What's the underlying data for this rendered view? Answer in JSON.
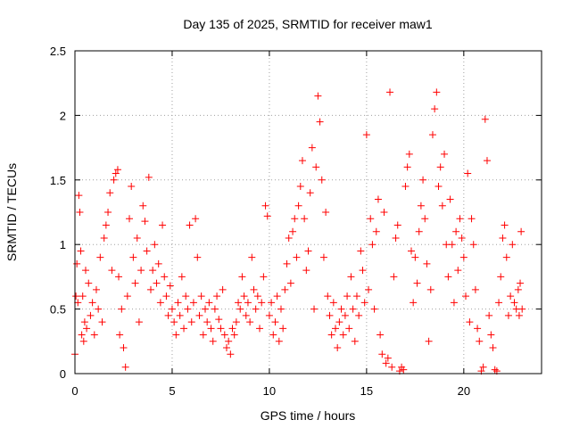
{
  "chart_data": {
    "type": "scatter",
    "title": "Day 135 of 2025, SRMTID for receiver maw1",
    "xlabel": "GPS time / hours",
    "ylabel": "SRMTID / TECUs",
    "xlim": [
      0,
      24
    ],
    "ylim": [
      0,
      2.5
    ],
    "xticks": [
      0,
      5,
      10,
      15,
      20
    ],
    "xtick_labels": [
      "0",
      "5",
      "10",
      "15",
      "20"
    ],
    "yticks": [
      0,
      0.5,
      1,
      1.5,
      2,
      2.5
    ],
    "ytick_labels": [
      "0",
      "0.5",
      "1",
      "1.5",
      "2",
      "2.5"
    ],
    "grid": true,
    "marker": "+",
    "series": [
      {
        "name": "SRMTID",
        "color": "#ff0000",
        "points": [
          [
            0.0,
            0.15
          ],
          [
            0.05,
            0.6
          ],
          [
            0.1,
            0.85
          ],
          [
            0.15,
            0.55
          ],
          [
            0.2,
            1.38
          ],
          [
            0.25,
            1.25
          ],
          [
            0.3,
            0.95
          ],
          [
            0.35,
            0.3
          ],
          [
            0.4,
            0.6
          ],
          [
            0.45,
            0.25
          ],
          [
            0.5,
            0.4
          ],
          [
            0.55,
            0.8
          ],
          [
            0.6,
            0.35
          ],
          [
            0.7,
            0.7
          ],
          [
            0.8,
            0.45
          ],
          [
            0.9,
            0.55
          ],
          [
            1.0,
            0.3
          ],
          [
            1.1,
            0.65
          ],
          [
            1.2,
            0.5
          ],
          [
            1.3,
            0.9
          ],
          [
            1.4,
            0.4
          ],
          [
            1.5,
            1.05
          ],
          [
            1.6,
            1.15
          ],
          [
            1.7,
            1.25
          ],
          [
            1.8,
            1.4
          ],
          [
            1.9,
            0.8
          ],
          [
            2.0,
            1.5
          ],
          [
            2.1,
            1.55
          ],
          [
            2.2,
            1.58
          ],
          [
            2.25,
            0.75
          ],
          [
            2.3,
            0.3
          ],
          [
            2.4,
            0.5
          ],
          [
            2.5,
            0.2
          ],
          [
            2.6,
            0.05
          ],
          [
            2.7,
            0.6
          ],
          [
            2.8,
            1.2
          ],
          [
            2.9,
            1.45
          ],
          [
            3.0,
            0.9
          ],
          [
            3.1,
            0.7
          ],
          [
            3.2,
            1.05
          ],
          [
            3.3,
            0.4
          ],
          [
            3.4,
            0.8
          ],
          [
            3.5,
            1.3
          ],
          [
            3.6,
            1.18
          ],
          [
            3.7,
            0.95
          ],
          [
            3.8,
            1.52
          ],
          [
            3.9,
            0.65
          ],
          [
            4.0,
            0.8
          ],
          [
            4.1,
            1.0
          ],
          [
            4.2,
            0.7
          ],
          [
            4.3,
            0.85
          ],
          [
            4.4,
            0.55
          ],
          [
            4.5,
            1.15
          ],
          [
            4.6,
            0.75
          ],
          [
            4.7,
            0.6
          ],
          [
            4.8,
            0.45
          ],
          [
            4.9,
            0.68
          ],
          [
            5.0,
            0.5
          ],
          [
            5.1,
            0.4
          ],
          [
            5.2,
            0.3
          ],
          [
            5.3,
            0.55
          ],
          [
            5.4,
            0.45
          ],
          [
            5.5,
            0.75
          ],
          [
            5.6,
            0.35
          ],
          [
            5.7,
            0.6
          ],
          [
            5.8,
            0.5
          ],
          [
            5.9,
            1.15
          ],
          [
            6.0,
            0.4
          ],
          [
            6.1,
            0.55
          ],
          [
            6.2,
            1.2
          ],
          [
            6.3,
            0.9
          ],
          [
            6.4,
            0.45
          ],
          [
            6.5,
            0.6
          ],
          [
            6.6,
            0.3
          ],
          [
            6.7,
            0.5
          ],
          [
            6.8,
            0.4
          ],
          [
            6.9,
            0.55
          ],
          [
            7.0,
            0.35
          ],
          [
            7.1,
            0.25
          ],
          [
            7.2,
            0.5
          ],
          [
            7.3,
            0.6
          ],
          [
            7.4,
            0.42
          ],
          [
            7.5,
            0.35
          ],
          [
            7.6,
            0.65
          ],
          [
            7.7,
            0.3
          ],
          [
            7.8,
            0.2
          ],
          [
            7.9,
            0.25
          ],
          [
            8.0,
            0.15
          ],
          [
            8.1,
            0.35
          ],
          [
            8.2,
            0.3
          ],
          [
            8.3,
            0.4
          ],
          [
            8.4,
            0.55
          ],
          [
            8.5,
            0.5
          ],
          [
            8.6,
            0.75
          ],
          [
            8.7,
            0.6
          ],
          [
            8.8,
            0.45
          ],
          [
            8.9,
            0.55
          ],
          [
            9.0,
            0.4
          ],
          [
            9.1,
            0.9
          ],
          [
            9.2,
            0.65
          ],
          [
            9.3,
            0.5
          ],
          [
            9.4,
            0.6
          ],
          [
            9.5,
            0.35
          ],
          [
            9.6,
            0.55
          ],
          [
            9.7,
            0.75
          ],
          [
            9.8,
            1.3
          ],
          [
            9.9,
            1.22
          ],
          [
            10.0,
            0.45
          ],
          [
            10.1,
            0.55
          ],
          [
            10.2,
            0.3
          ],
          [
            10.3,
            0.4
          ],
          [
            10.4,
            0.6
          ],
          [
            10.5,
            0.25
          ],
          [
            10.6,
            0.5
          ],
          [
            10.7,
            0.35
          ],
          [
            10.8,
            0.65
          ],
          [
            10.9,
            0.85
          ],
          [
            11.0,
            1.05
          ],
          [
            11.1,
            0.7
          ],
          [
            11.2,
            1.1
          ],
          [
            11.3,
            1.2
          ],
          [
            11.4,
            0.9
          ],
          [
            11.5,
            1.3
          ],
          [
            11.6,
            1.45
          ],
          [
            11.7,
            1.65
          ],
          [
            11.8,
            1.2
          ],
          [
            11.9,
            0.8
          ],
          [
            12.0,
            0.95
          ],
          [
            12.1,
            1.4
          ],
          [
            12.2,
            1.75
          ],
          [
            12.3,
            0.5
          ],
          [
            12.4,
            1.6
          ],
          [
            12.5,
            2.15
          ],
          [
            12.6,
            1.95
          ],
          [
            12.7,
            1.5
          ],
          [
            12.8,
            0.9
          ],
          [
            12.9,
            1.25
          ],
          [
            13.0,
            0.6
          ],
          [
            13.1,
            0.45
          ],
          [
            13.2,
            0.3
          ],
          [
            13.3,
            0.55
          ],
          [
            13.4,
            0.35
          ],
          [
            13.5,
            0.2
          ],
          [
            13.6,
            0.4
          ],
          [
            13.7,
            0.5
          ],
          [
            13.8,
            0.3
          ],
          [
            13.9,
            0.45
          ],
          [
            14.0,
            0.6
          ],
          [
            14.1,
            0.35
          ],
          [
            14.2,
            0.75
          ],
          [
            14.3,
            0.5
          ],
          [
            14.4,
            0.25
          ],
          [
            14.5,
            0.6
          ],
          [
            14.6,
            0.45
          ],
          [
            14.7,
            0.95
          ],
          [
            14.8,
            0.8
          ],
          [
            14.9,
            0.55
          ],
          [
            15.0,
            1.85
          ],
          [
            15.1,
            0.65
          ],
          [
            15.2,
            1.2
          ],
          [
            15.3,
            1.0
          ],
          [
            15.4,
            0.5
          ],
          [
            15.5,
            1.1
          ],
          [
            15.6,
            1.35
          ],
          [
            15.7,
            0.3
          ],
          [
            15.8,
            0.15
          ],
          [
            15.9,
            1.25
          ],
          [
            16.0,
            0.08
          ],
          [
            16.1,
            0.12
          ],
          [
            16.2,
            2.18
          ],
          [
            16.3,
            0.05
          ],
          [
            16.4,
            0.75
          ],
          [
            16.5,
            1.05
          ],
          [
            16.6,
            1.15
          ],
          [
            16.7,
            0.02
          ],
          [
            16.8,
            0.05
          ],
          [
            16.9,
            0.03
          ],
          [
            17.0,
            1.45
          ],
          [
            17.1,
            1.6
          ],
          [
            17.2,
            1.7
          ],
          [
            17.3,
            0.95
          ],
          [
            17.4,
            0.55
          ],
          [
            17.5,
            0.9
          ],
          [
            17.6,
            0.7
          ],
          [
            17.7,
            1.1
          ],
          [
            17.8,
            1.3
          ],
          [
            17.9,
            1.5
          ],
          [
            18.0,
            1.2
          ],
          [
            18.1,
            0.85
          ],
          [
            18.2,
            0.25
          ],
          [
            18.3,
            0.65
          ],
          [
            18.4,
            1.85
          ],
          [
            18.5,
            2.05
          ],
          [
            18.6,
            2.18
          ],
          [
            18.7,
            1.45
          ],
          [
            18.8,
            1.6
          ],
          [
            18.9,
            1.3
          ],
          [
            19.0,
            1.7
          ],
          [
            19.1,
            1.0
          ],
          [
            19.2,
            0.75
          ],
          [
            19.3,
            1.35
          ],
          [
            19.4,
            1.0
          ],
          [
            19.5,
            0.55
          ],
          [
            19.6,
            1.1
          ],
          [
            19.7,
            0.8
          ],
          [
            19.8,
            1.2
          ],
          [
            19.9,
            1.05
          ],
          [
            20.0,
            0.9
          ],
          [
            20.1,
            0.6
          ],
          [
            20.2,
            1.55
          ],
          [
            20.3,
            0.4
          ],
          [
            20.4,
            1.2
          ],
          [
            20.5,
            1.0
          ],
          [
            20.6,
            0.65
          ],
          [
            20.7,
            0.35
          ],
          [
            20.8,
            0.25
          ],
          [
            20.9,
            0.02
          ],
          [
            21.0,
            0.05
          ],
          [
            21.1,
            1.97
          ],
          [
            21.2,
            1.65
          ],
          [
            21.3,
            0.45
          ],
          [
            21.4,
            0.3
          ],
          [
            21.5,
            0.2
          ],
          [
            21.6,
            0.03
          ],
          [
            21.7,
            0.02
          ],
          [
            21.8,
            0.55
          ],
          [
            21.9,
            0.75
          ],
          [
            22.0,
            1.05
          ],
          [
            22.1,
            1.15
          ],
          [
            22.2,
            0.9
          ],
          [
            22.3,
            0.45
          ],
          [
            22.4,
            0.6
          ],
          [
            22.5,
            1.0
          ],
          [
            22.6,
            0.55
          ],
          [
            22.7,
            0.5
          ],
          [
            22.8,
            0.65
          ],
          [
            22.85,
            0.45
          ],
          [
            22.9,
            0.7
          ],
          [
            22.95,
            1.1
          ],
          [
            23.0,
            0.5
          ]
        ]
      }
    ]
  }
}
